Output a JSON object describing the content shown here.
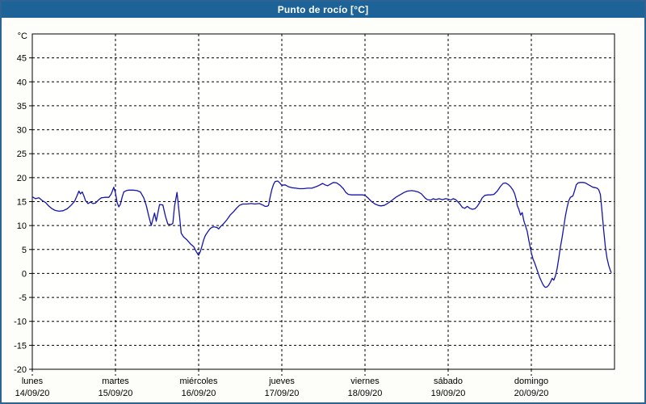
{
  "window": {
    "title": "Punto de rocío [°C]"
  },
  "colors": {
    "header_bg": "#1d6397",
    "header_text": "#ffffff",
    "frame_border": "#2e6493",
    "line": "#1414aa",
    "grid": "#000000",
    "label": "#000000",
    "plot_background": "#fffffe"
  },
  "chart_data": {
    "type": "line",
    "title": "Punto de rocío [°C]",
    "ylabel": "°C",
    "ylim": [
      -20,
      50
    ],
    "y_ticks": [
      45,
      40,
      35,
      30,
      25,
      20,
      15,
      10,
      5,
      0,
      -5,
      -10,
      -15,
      -20
    ],
    "grid": "dashed",
    "legend": "none",
    "xlim_days": [
      0,
      7
    ],
    "x_days": [
      {
        "name": "lunes",
        "date": "14/09/20"
      },
      {
        "name": "martes",
        "date": "15/09/20"
      },
      {
        "name": "miércoles",
        "date": "16/09/20"
      },
      {
        "name": "jueves",
        "date": "17/09/20"
      },
      {
        "name": "viernes",
        "date": "18/09/20"
      },
      {
        "name": "sábado",
        "date": "19/09/20"
      },
      {
        "name": "domingo",
        "date": "20/09/20"
      }
    ],
    "series": [
      {
        "name": "Punto de rocío",
        "unit": "°C",
        "color": "#1414aa",
        "points": [
          [
            0.0,
            16.0
          ],
          [
            0.04,
            15.6
          ],
          [
            0.08,
            15.8
          ],
          [
            0.12,
            15.2
          ],
          [
            0.16,
            14.8
          ],
          [
            0.19,
            14.2
          ],
          [
            0.23,
            13.6
          ],
          [
            0.27,
            13.2
          ],
          [
            0.32,
            13.0
          ],
          [
            0.37,
            13.1
          ],
          [
            0.42,
            13.5
          ],
          [
            0.47,
            14.3
          ],
          [
            0.51,
            15.1
          ],
          [
            0.54,
            16.3
          ],
          [
            0.56,
            17.2
          ],
          [
            0.58,
            16.6
          ],
          [
            0.6,
            17.0
          ],
          [
            0.62,
            16.2
          ],
          [
            0.64,
            15.2
          ],
          [
            0.67,
            14.6
          ],
          [
            0.7,
            14.9
          ],
          [
            0.73,
            14.6
          ],
          [
            0.76,
            14.7
          ],
          [
            0.8,
            15.4
          ],
          [
            0.83,
            15.8
          ],
          [
            0.88,
            15.9
          ],
          [
            0.92,
            15.9
          ],
          [
            0.95,
            16.6
          ],
          [
            0.98,
            18.0
          ],
          [
            1.0,
            16.8
          ],
          [
            1.02,
            14.8
          ],
          [
            1.04,
            13.9
          ],
          [
            1.06,
            14.5
          ],
          [
            1.08,
            15.9
          ],
          [
            1.1,
            17.0
          ],
          [
            1.13,
            17.3
          ],
          [
            1.16,
            17.4
          ],
          [
            1.21,
            17.4
          ],
          [
            1.26,
            17.3
          ],
          [
            1.3,
            17.0
          ],
          [
            1.34,
            15.8
          ],
          [
            1.37,
            14.2
          ],
          [
            1.4,
            12.0
          ],
          [
            1.43,
            10.0
          ],
          [
            1.47,
            12.6
          ],
          [
            1.49,
            10.9
          ],
          [
            1.53,
            14.4
          ],
          [
            1.57,
            14.3
          ],
          [
            1.6,
            12.0
          ],
          [
            1.63,
            10.3
          ],
          [
            1.67,
            10.2
          ],
          [
            1.69,
            10.5
          ],
          [
            1.71,
            14.0
          ],
          [
            1.74,
            16.9
          ],
          [
            1.77,
            12.0
          ],
          [
            1.79,
            8.4
          ],
          [
            1.82,
            7.6
          ],
          [
            1.86,
            7.0
          ],
          [
            1.9,
            6.2
          ],
          [
            1.94,
            5.6
          ],
          [
            1.97,
            4.6
          ],
          [
            1.99,
            4.0
          ],
          [
            2.0,
            3.8
          ],
          [
            2.02,
            4.6
          ],
          [
            2.04,
            5.7
          ],
          [
            2.06,
            7.0
          ],
          [
            2.08,
            7.9
          ],
          [
            2.11,
            8.7
          ],
          [
            2.14,
            9.4
          ],
          [
            2.17,
            9.7
          ],
          [
            2.19,
            9.7
          ],
          [
            2.22,
            9.6
          ],
          [
            2.24,
            9.3
          ],
          [
            2.27,
            9.9
          ],
          [
            2.3,
            10.4
          ],
          [
            2.34,
            11.2
          ],
          [
            2.38,
            12.2
          ],
          [
            2.42,
            12.9
          ],
          [
            2.46,
            13.7
          ],
          [
            2.49,
            14.2
          ],
          [
            2.53,
            14.5
          ],
          [
            2.58,
            14.5
          ],
          [
            2.63,
            14.6
          ],
          [
            2.68,
            14.5
          ],
          [
            2.73,
            14.6
          ],
          [
            2.77,
            14.3
          ],
          [
            2.8,
            14.0
          ],
          [
            2.82,
            14.0
          ],
          [
            2.84,
            14.2
          ],
          [
            2.86,
            16.0
          ],
          [
            2.88,
            17.5
          ],
          [
            2.9,
            18.6
          ],
          [
            2.92,
            19.2
          ],
          [
            2.95,
            19.3
          ],
          [
            2.97,
            19.0
          ],
          [
            3.0,
            18.4
          ],
          [
            3.04,
            18.5
          ],
          [
            3.08,
            18.1
          ],
          [
            3.12,
            17.9
          ],
          [
            3.17,
            17.8
          ],
          [
            3.21,
            17.7
          ],
          [
            3.26,
            17.7
          ],
          [
            3.31,
            17.8
          ],
          [
            3.36,
            17.8
          ],
          [
            3.41,
            18.1
          ],
          [
            3.45,
            18.4
          ],
          [
            3.49,
            18.8
          ],
          [
            3.52,
            18.5
          ],
          [
            3.55,
            18.3
          ],
          [
            3.58,
            18.6
          ],
          [
            3.62,
            19.0
          ],
          [
            3.66,
            18.9
          ],
          [
            3.7,
            18.4
          ],
          [
            3.74,
            17.7
          ],
          [
            3.77,
            16.9
          ],
          [
            3.8,
            16.5
          ],
          [
            3.84,
            16.4
          ],
          [
            3.88,
            16.4
          ],
          [
            3.93,
            16.4
          ],
          [
            3.97,
            16.4
          ],
          [
            4.0,
            16.3
          ],
          [
            4.04,
            15.7
          ],
          [
            4.08,
            15.0
          ],
          [
            4.12,
            14.5
          ],
          [
            4.16,
            14.2
          ],
          [
            4.19,
            14.1
          ],
          [
            4.23,
            14.2
          ],
          [
            4.27,
            14.6
          ],
          [
            4.32,
            15.2
          ],
          [
            4.37,
            15.9
          ],
          [
            4.42,
            16.4
          ],
          [
            4.47,
            16.9
          ],
          [
            4.51,
            17.2
          ],
          [
            4.56,
            17.3
          ],
          [
            4.6,
            17.2
          ],
          [
            4.64,
            17.0
          ],
          [
            4.68,
            16.6
          ],
          [
            4.72,
            15.8
          ],
          [
            4.75,
            15.4
          ],
          [
            4.79,
            15.3
          ],
          [
            4.82,
            15.6
          ],
          [
            4.85,
            15.4
          ],
          [
            4.89,
            15.6
          ],
          [
            4.93,
            15.4
          ],
          [
            4.97,
            15.6
          ],
          [
            5.0,
            15.5
          ],
          [
            5.03,
            15.3
          ],
          [
            5.06,
            15.6
          ],
          [
            5.09,
            15.4
          ],
          [
            5.12,
            14.9
          ],
          [
            5.15,
            14.3
          ],
          [
            5.17,
            13.8
          ],
          [
            5.2,
            13.6
          ],
          [
            5.23,
            14.0
          ],
          [
            5.26,
            13.6
          ],
          [
            5.29,
            13.4
          ],
          [
            5.32,
            13.5
          ],
          [
            5.35,
            14.0
          ],
          [
            5.38,
            14.8
          ],
          [
            5.41,
            15.8
          ],
          [
            5.44,
            16.3
          ],
          [
            5.48,
            16.4
          ],
          [
            5.51,
            16.4
          ],
          [
            5.55,
            16.5
          ],
          [
            5.59,
            17.2
          ],
          [
            5.63,
            18.2
          ],
          [
            5.66,
            18.8
          ],
          [
            5.69,
            18.9
          ],
          [
            5.72,
            18.6
          ],
          [
            5.75,
            18.1
          ],
          [
            5.78,
            17.4
          ],
          [
            5.8,
            16.6
          ],
          [
            5.82,
            15.3
          ],
          [
            5.83,
            14.2
          ],
          [
            5.85,
            13.4
          ],
          [
            5.87,
            12.2
          ],
          [
            5.89,
            12.7
          ],
          [
            5.91,
            11.0
          ],
          [
            5.93,
            9.9
          ],
          [
            5.95,
            8.8
          ],
          [
            5.97,
            6.9
          ],
          [
            6.0,
            4.3
          ],
          [
            6.02,
            3.0
          ],
          [
            6.04,
            2.2
          ],
          [
            6.06,
            1.2
          ],
          [
            6.08,
            0.2
          ],
          [
            6.1,
            -0.8
          ],
          [
            6.12,
            -1.6
          ],
          [
            6.14,
            -2.3
          ],
          [
            6.16,
            -2.8
          ],
          [
            6.17,
            -2.9
          ],
          [
            6.19,
            -2.8
          ],
          [
            6.21,
            -2.4
          ],
          [
            6.23,
            -1.8
          ],
          [
            6.25,
            -1.0
          ],
          [
            6.27,
            -1.4
          ],
          [
            6.29,
            -0.5
          ],
          [
            6.31,
            1.0
          ],
          [
            6.33,
            3.2
          ],
          [
            6.35,
            5.5
          ],
          [
            6.37,
            7.5
          ],
          [
            6.39,
            9.8
          ],
          [
            6.41,
            12.0
          ],
          [
            6.43,
            13.8
          ],
          [
            6.45,
            15.2
          ],
          [
            6.47,
            15.9
          ],
          [
            6.49,
            16.1
          ],
          [
            6.5,
            16.2
          ],
          [
            6.52,
            17.3
          ],
          [
            6.54,
            18.5
          ],
          [
            6.56,
            18.9
          ],
          [
            6.59,
            19.0
          ],
          [
            6.62,
            19.0
          ],
          [
            6.65,
            18.9
          ],
          [
            6.68,
            18.6
          ],
          [
            6.71,
            18.3
          ],
          [
            6.74,
            18.0
          ],
          [
            6.77,
            17.9
          ],
          [
            6.79,
            17.8
          ],
          [
            6.81,
            17.5
          ],
          [
            6.83,
            16.5
          ],
          [
            6.85,
            13.0
          ],
          [
            6.87,
            9.0
          ],
          [
            6.89,
            5.5
          ],
          [
            6.91,
            3.2
          ],
          [
            6.93,
            1.7
          ],
          [
            6.95,
            0.6
          ],
          [
            6.96,
            0.2
          ]
        ]
      }
    ]
  }
}
